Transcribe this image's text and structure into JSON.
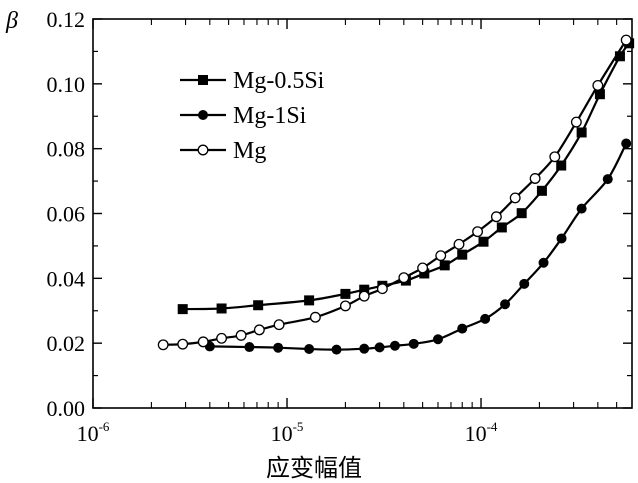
{
  "chart_data": {
    "type": "line",
    "title": "",
    "xlabel": "应变幅值",
    "ylabel": "β",
    "xscale": "log",
    "xlim": [
      1e-06,
      0.0006
    ],
    "ylim": [
      0.0,
      0.12
    ],
    "yticks": [
      0.0,
      0.02,
      0.04,
      0.06,
      0.08,
      0.1,
      0.12
    ],
    "ytick_labels": [
      "0.00",
      "0.02",
      "0.04",
      "0.06",
      "0.08",
      "0.10",
      "0.12"
    ],
    "xticks": [
      {
        "value": 1e-06,
        "base": "10",
        "exp": "-6"
      },
      {
        "value": 1e-05,
        "base": "10",
        "exp": "-5"
      },
      {
        "value": 0.0001,
        "base": "10",
        "exp": "-4"
      }
    ],
    "legend_position": "top-left",
    "series": [
      {
        "name": "Mg-0.5Si",
        "marker": "square-filled",
        "x": [
          2.9e-06,
          4.6e-06,
          7.1e-06,
          1.3e-05,
          2e-05,
          2.5e-05,
          3.1e-05,
          4.1e-05,
          5.1e-05,
          6.5e-05,
          8e-05,
          0.000103,
          0.000128,
          0.000162,
          0.000206,
          0.000259,
          0.00033,
          0.00041,
          0.00052,
          0.00058
        ],
        "values": [
          0.0305,
          0.0307,
          0.0317,
          0.0332,
          0.0352,
          0.0365,
          0.0377,
          0.0393,
          0.0415,
          0.044,
          0.0473,
          0.0513,
          0.0557,
          0.0601,
          0.067,
          0.0748,
          0.085,
          0.0968,
          0.1085,
          0.1125
        ]
      },
      {
        "name": "Mg-1Si",
        "marker": "circle-filled",
        "x": [
          4e-06,
          6.4e-06,
          9e-06,
          1.3e-05,
          1.8e-05,
          2.5e-05,
          3e-05,
          3.6e-05,
          4.5e-05,
          6e-05,
          8e-05,
          0.000105,
          0.000133,
          0.000167,
          0.00021,
          0.00026,
          0.00033,
          0.00045,
          0.00056
        ],
        "values": [
          0.019,
          0.0188,
          0.0186,
          0.0182,
          0.018,
          0.0183,
          0.0187,
          0.0192,
          0.0198,
          0.0212,
          0.0245,
          0.0275,
          0.032,
          0.0383,
          0.0448,
          0.0523,
          0.0615,
          0.0706,
          0.0816
        ]
      },
      {
        "name": "Mg",
        "marker": "circle-open",
        "x": [
          2.3e-06,
          2.9e-06,
          3.7e-06,
          4.6e-06,
          5.8e-06,
          7.2e-06,
          9.1e-06,
          1.4e-05,
          2e-05,
          2.5e-05,
          3.1e-05,
          4e-05,
          5e-05,
          6.2e-05,
          7.7e-05,
          9.6e-05,
          0.00012,
          0.00015,
          0.00019,
          0.00024,
          0.00031,
          0.0004,
          0.00056
        ],
        "values": [
          0.0195,
          0.0197,
          0.0204,
          0.0215,
          0.0224,
          0.0241,
          0.0257,
          0.028,
          0.0315,
          0.0345,
          0.0368,
          0.0402,
          0.0432,
          0.047,
          0.0505,
          0.0544,
          0.059,
          0.0648,
          0.0708,
          0.0775,
          0.0882,
          0.0995,
          0.1135
        ]
      }
    ]
  }
}
